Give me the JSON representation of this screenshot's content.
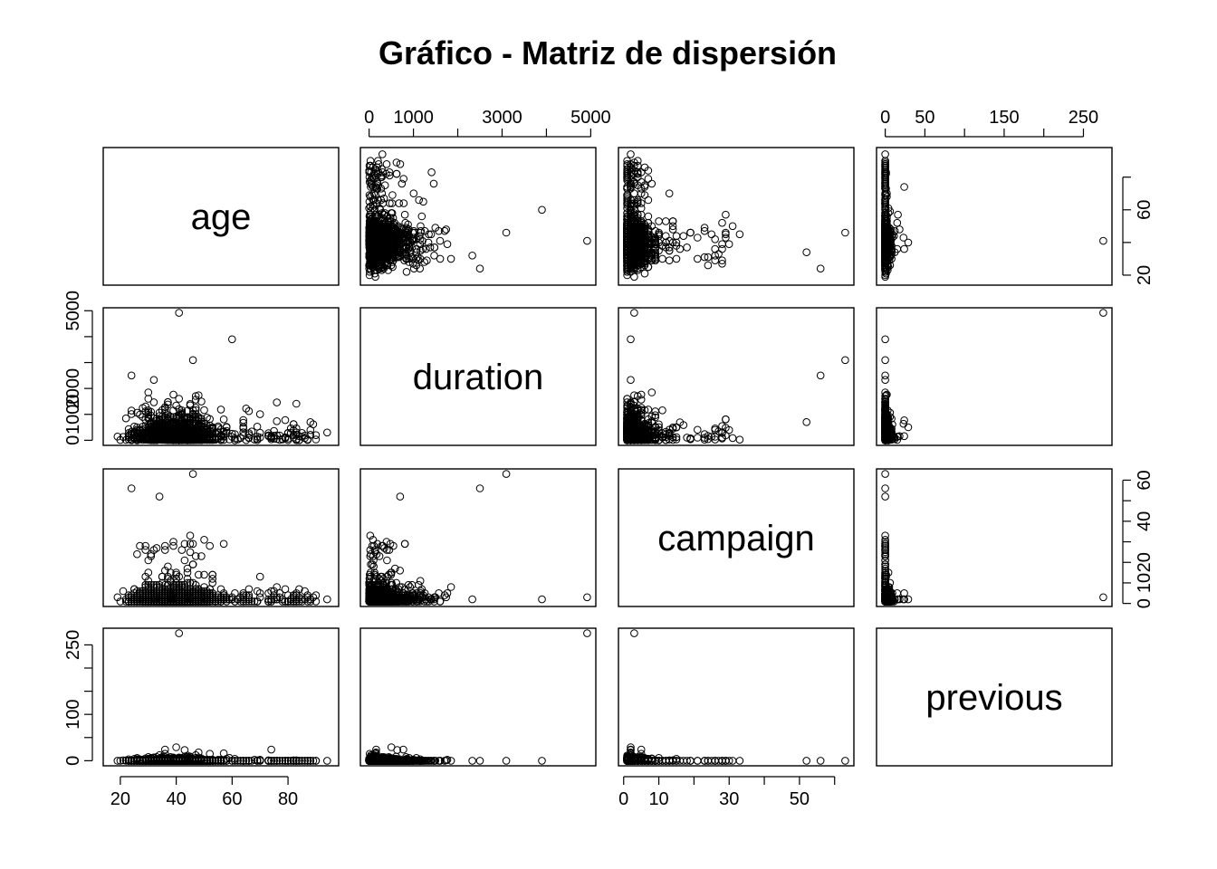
{
  "chart_data": {
    "type": "scatter",
    "title": "Gráfico - Matriz de dispersión",
    "variables": [
      "age",
      "duration",
      "campaign",
      "previous"
    ],
    "ranges": {
      "age": [
        17,
        95
      ],
      "duration": [
        0,
        4918
      ],
      "campaign": [
        1,
        63
      ],
      "previous": [
        0,
        275
      ]
    },
    "ticks": {
      "age": [
        20,
        40,
        60,
        80
      ],
      "duration": [
        0,
        1000,
        2000,
        3000,
        4000,
        5000
      ],
      "campaign": [
        0,
        10,
        20,
        30,
        40,
        50,
        60
      ],
      "previous": [
        0,
        50,
        100,
        150,
        200,
        250
      ]
    },
    "tick_labels": {
      "age": [
        "20",
        "40",
        "60",
        "80"
      ],
      "duration": [
        "0",
        "1000",
        "2000",
        "3000",
        "4000",
        "5000"
      ],
      "campaign": [
        "0",
        "10",
        "20",
        "30",
        "40",
        "50",
        "60"
      ],
      "previous": [
        "0",
        "50",
        "100",
        "150",
        "200",
        "250"
      ]
    },
    "axis_labels": {
      "top": {
        "duration": [
          "0",
          "1000",
          "3000",
          "5000"
        ],
        "previous": [
          "0",
          "50",
          "150",
          "250"
        ]
      },
      "bottom": {
        "age": [
          "20",
          "40",
          "60",
          "80"
        ],
        "campaign": [
          "0",
          "10",
          "30",
          "50"
        ]
      },
      "left": {
        "duration": [
          "0",
          "1000",
          "2000",
          "5000"
        ],
        "previous": [
          "0",
          "100",
          "250"
        ]
      },
      "right": {
        "age": [
          "20",
          "60"
        ],
        "campaign": [
          "0",
          "10",
          "20",
          "40",
          "60"
        ]
      }
    },
    "highlighted_points": [
      {
        "age": 41,
        "duration": 4918,
        "campaign": 3,
        "previous": 275
      },
      {
        "age": 46,
        "duration": 3094,
        "campaign": 63,
        "previous": 0
      },
      {
        "age": 24,
        "duration": 2500,
        "campaign": 56,
        "previous": 0
      },
      {
        "age": 34,
        "duration": 700,
        "campaign": 52,
        "previous": 0
      },
      {
        "age": 94,
        "duration": 300,
        "campaign": 2,
        "previous": 0
      },
      {
        "age": 60,
        "duration": 3900,
        "campaign": 2,
        "previous": 0
      }
    ],
    "grid": false,
    "legend": "none"
  }
}
